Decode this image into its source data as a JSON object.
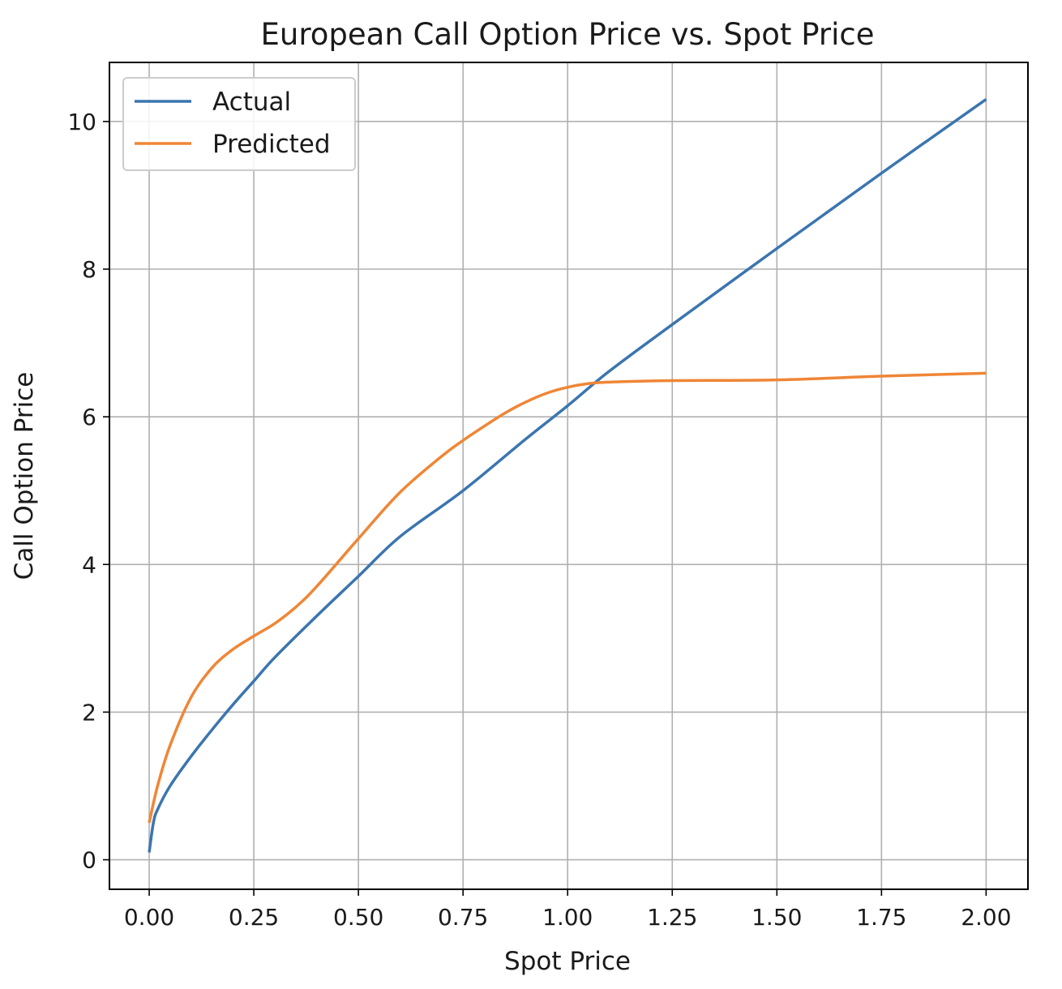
{
  "chart_data": {
    "type": "line",
    "title": "European Call Option Price vs. Spot Price",
    "xlabel": "Spot Price",
    "ylabel": "Call Option Price",
    "xlim": [
      -0.095,
      2.1
    ],
    "ylim": [
      -0.4,
      10.8
    ],
    "xticks": [
      0.0,
      0.25,
      0.5,
      0.75,
      1.0,
      1.25,
      1.5,
      1.75,
      2.0
    ],
    "xtick_labels": [
      "0.00",
      "0.25",
      "0.50",
      "0.75",
      "1.00",
      "1.25",
      "1.50",
      "1.75",
      "2.00"
    ],
    "yticks": [
      0,
      2,
      4,
      6,
      8,
      10
    ],
    "ytick_labels": [
      "0",
      "2",
      "4",
      "6",
      "8",
      "10"
    ],
    "grid": true,
    "legend_position": "top-left",
    "series": [
      {
        "name": "Actual",
        "color": "#3b75af",
        "x": [
          0.0,
          0.01,
          0.02,
          0.05,
          0.1,
          0.15,
          0.2,
          0.25,
          0.3,
          0.4,
          0.5,
          0.6,
          0.75,
          0.9,
          1.0,
          1.1,
          1.25,
          1.5,
          1.75,
          2.0
        ],
        "y": [
          0.1,
          0.5,
          0.68,
          1.0,
          1.4,
          1.76,
          2.1,
          2.42,
          2.74,
          3.3,
          3.84,
          4.38,
          5.0,
          5.7,
          6.15,
          6.62,
          7.25,
          8.28,
          9.3,
          10.3
        ]
      },
      {
        "name": "Predicted",
        "color": "#ef8636",
        "x": [
          0.0,
          0.02,
          0.05,
          0.1,
          0.15,
          0.2,
          0.25,
          0.3,
          0.35,
          0.4,
          0.5,
          0.6,
          0.7,
          0.75,
          0.8,
          0.85,
          0.9,
          0.95,
          1.0,
          1.05,
          1.1,
          1.25,
          1.5,
          1.75,
          2.0
        ],
        "y": [
          0.5,
          1.0,
          1.55,
          2.2,
          2.6,
          2.85,
          3.03,
          3.2,
          3.42,
          3.7,
          4.35,
          4.98,
          5.47,
          5.68,
          5.87,
          6.05,
          6.2,
          6.32,
          6.4,
          6.45,
          6.47,
          6.49,
          6.5,
          6.55,
          6.59
        ]
      }
    ]
  }
}
